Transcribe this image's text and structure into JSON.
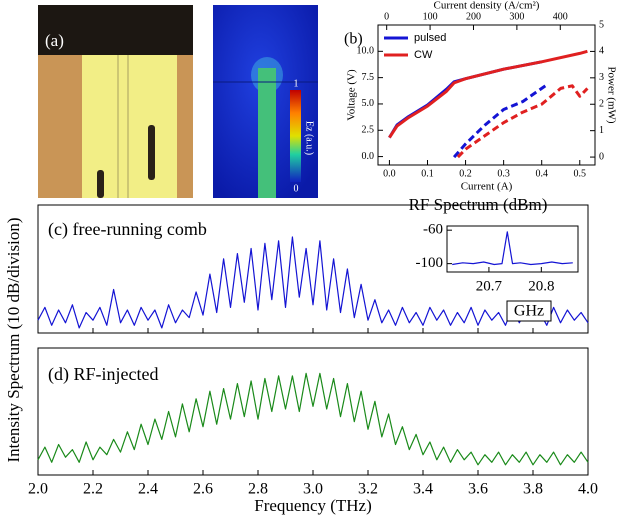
{
  "panel_a": {
    "label": "(a)",
    "colorbar_ticks": [
      0,
      1
    ],
    "colorbar_label": "Ez (a.u.)"
  },
  "chart_data": [
    {
      "type": "line",
      "label": "(b)",
      "xlabel": "Current (A)",
      "ylabel": "Voltage (V)",
      "y2label": "Power (mW)",
      "x2label": "Current density (A/cm²)",
      "xlim": [
        -0.03,
        0.54
      ],
      "xticks": [
        {
          "value": 0,
          "label": "0.0"
        },
        0.1,
        0.2,
        0.3,
        0.4,
        0.5
      ],
      "ylim": [
        -0.8,
        12.5
      ],
      "yticks": [
        {
          "value": 0,
          "label": "0.0"
        },
        2.5,
        {
          "value": 5,
          "label": "5.0"
        },
        7.5,
        {
          "value": 10,
          "label": "10.0"
        }
      ],
      "y2lim": [
        -0.3,
        5
      ],
      "y2ticks": [
        0,
        1,
        2,
        3,
        4,
        5
      ],
      "x2lim": [
        -20,
        480
      ],
      "x2ticks": [
        0,
        100,
        200,
        300,
        400
      ],
      "legend": "upper left",
      "series": [
        {
          "name": "pulsed",
          "color": "#1414d4",
          "linestyle": "solid",
          "x": [
            0,
            0.02,
            0.05,
            0.1,
            0.15,
            0.17,
            0.2,
            0.3,
            0.4
          ],
          "values": [
            1.8,
            3.0,
            3.8,
            4.9,
            6.4,
            7.1,
            7.4,
            8.3,
            9.0
          ]
        },
        {
          "name": "CW",
          "color": "#e02020",
          "linestyle": "solid",
          "x": [
            0,
            0.02,
            0.05,
            0.1,
            0.15,
            0.17,
            0.2,
            0.3,
            0.4,
            0.5,
            0.52
          ],
          "values": [
            1.8,
            2.9,
            3.7,
            4.8,
            6.2,
            7.0,
            7.4,
            8.3,
            9.0,
            9.8,
            10.0
          ]
        },
        {
          "color": "#1414d4",
          "linestyle": "dashed",
          "axis": "y2",
          "x": [
            0.17,
            0.2,
            0.25,
            0.3,
            0.35,
            0.4,
            0.41
          ],
          "values": [
            0,
            0.5,
            1.2,
            1.8,
            2.1,
            2.6,
            2.7
          ]
        },
        {
          "color": "#e02020",
          "linestyle": "dashed",
          "axis": "y2",
          "x": [
            0.18,
            0.2,
            0.25,
            0.3,
            0.35,
            0.4,
            0.45,
            0.48,
            0.5,
            0.52
          ],
          "values": [
            0,
            0.3,
            0.8,
            1.3,
            1.7,
            2.0,
            2.6,
            2.7,
            2.3,
            2.6
          ]
        }
      ]
    },
    {
      "type": "line",
      "label": "(c) free-running comb",
      "xlim": [
        2.0,
        4.0
      ],
      "xticks": [
        2.0,
        2.2,
        2.4,
        2.6,
        2.8,
        3.0,
        3.2,
        3.4,
        3.6,
        3.8,
        4.0
      ],
      "ylim": [
        0,
        5
      ],
      "x": [
        2.0,
        2.025,
        2.05,
        2.075,
        2.1,
        2.125,
        2.15,
        2.175,
        2.2,
        2.225,
        2.25,
        2.275,
        2.3,
        2.325,
        2.35,
        2.375,
        2.4,
        2.425,
        2.45,
        2.475,
        2.5,
        2.525,
        2.55,
        2.575,
        2.6,
        2.625,
        2.65,
        2.675,
        2.7,
        2.725,
        2.75,
        2.775,
        2.8,
        2.825,
        2.85,
        2.875,
        2.9,
        2.925,
        2.95,
        2.975,
        3.0,
        3.025,
        3.05,
        3.075,
        3.1,
        3.125,
        3.15,
        3.175,
        3.2,
        3.225,
        3.25,
        3.275,
        3.3,
        3.325,
        3.35,
        3.375,
        3.4,
        3.425,
        3.45,
        3.475,
        3.5,
        3.525,
        3.55,
        3.575,
        3.6,
        3.625,
        3.65,
        3.675,
        3.7,
        3.725,
        3.75,
        3.775,
        3.8,
        3.825,
        3.85,
        3.875,
        3.9,
        3.925,
        3.95,
        3.975,
        4.0
      ],
      "series": [
        {
          "color": "#1414d4",
          "values": [
            0.5,
            1.0,
            0.3,
            0.9,
            0.4,
            1.1,
            0.2,
            0.8,
            0.5,
            1.0,
            0.3,
            1.7,
            0.4,
            0.9,
            0.3,
            1.0,
            0.5,
            0.9,
            0.2,
            1.1,
            0.4,
            0.9,
            0.6,
            1.6,
            0.7,
            2.3,
            0.8,
            2.9,
            1.0,
            3.1,
            1.2,
            3.3,
            0.9,
            3.5,
            1.3,
            3.6,
            1.0,
            3.75,
            1.4,
            3.3,
            1.1,
            3.6,
            0.9,
            2.9,
            0.8,
            2.5,
            0.6,
            1.9,
            0.5,
            1.3,
            0.4,
            0.9,
            0.3,
            1.0,
            0.4,
            0.8,
            0.3,
            1.0,
            0.5,
            0.9,
            0.3,
            0.8,
            0.4,
            1.0,
            0.3,
            0.9,
            0.5,
            0.8,
            0.3,
            1.0,
            0.4,
            0.9,
            0.5,
            0.8,
            0.3,
            1.0,
            0.4,
            0.9,
            0.5,
            0.8,
            0.4
          ]
        }
      ]
    },
    {
      "type": "line",
      "ylabel": "RF Spectrum (dBm)",
      "xlabel": "GHz",
      "xlim": [
        20.62,
        20.87
      ],
      "xticks": [
        20.7,
        20.8
      ],
      "ylim": [
        -110,
        -55
      ],
      "yticks": [
        -60,
        -100
      ],
      "x": [
        20.63,
        20.65,
        20.67,
        20.69,
        20.71,
        20.725,
        20.735,
        20.745,
        20.76,
        20.78,
        20.8,
        20.82,
        20.84,
        20.86
      ],
      "series": [
        {
          "color": "#1414d4",
          "values": [
            -101,
            -99,
            -100,
            -98,
            -101,
            -100,
            -62,
            -100,
            -99,
            -101,
            -100,
            -98,
            -100,
            -99
          ]
        }
      ]
    },
    {
      "type": "line",
      "label": "(d) RF-injected",
      "xlabel": "Frequency (THz)",
      "ylabel": "Intensity Spectrum (10 dB/division)",
      "xlim": [
        2.0,
        4.0
      ],
      "xticks": [
        {
          "value": 2,
          "label": "2.0"
        },
        2.2,
        2.4,
        2.6,
        2.8,
        {
          "value": 3,
          "label": "3.0"
        },
        3.2,
        3.4,
        3.6,
        3.8,
        {
          "value": 4,
          "label": "4.0"
        }
      ],
      "ylim": [
        0,
        5
      ],
      "x": [
        2.0,
        2.025,
        2.05,
        2.075,
        2.1,
        2.125,
        2.15,
        2.175,
        2.2,
        2.225,
        2.25,
        2.275,
        2.3,
        2.325,
        2.35,
        2.375,
        2.4,
        2.425,
        2.45,
        2.475,
        2.5,
        2.525,
        2.55,
        2.575,
        2.6,
        2.625,
        2.65,
        2.675,
        2.7,
        2.725,
        2.75,
        2.775,
        2.8,
        2.825,
        2.85,
        2.875,
        2.9,
        2.925,
        2.95,
        2.975,
        3.0,
        3.025,
        3.05,
        3.075,
        3.1,
        3.125,
        3.15,
        3.175,
        3.2,
        3.225,
        3.25,
        3.275,
        3.3,
        3.325,
        3.35,
        3.375,
        3.4,
        3.425,
        3.45,
        3.475,
        3.5,
        3.525,
        3.55,
        3.575,
        3.6,
        3.625,
        3.65,
        3.675,
        3.7,
        3.725,
        3.75,
        3.775,
        3.8,
        3.825,
        3.85,
        3.875,
        3.9,
        3.925,
        3.95,
        3.975,
        4.0
      ],
      "series": [
        {
          "color": "#1a8a1a",
          "values": [
            0.6,
            1.1,
            0.5,
            1.2,
            0.7,
            1.0,
            0.5,
            1.3,
            0.6,
            1.1,
            0.8,
            1.4,
            0.9,
            1.7,
            1.0,
            2.0,
            1.2,
            2.2,
            1.4,
            2.5,
            1.5,
            2.8,
            1.7,
            3.0,
            1.9,
            3.3,
            2.0,
            3.4,
            2.2,
            3.6,
            2.3,
            3.7,
            2.2,
            3.8,
            2.5,
            3.9,
            2.6,
            3.9,
            2.5,
            4.0,
            2.7,
            4.0,
            2.6,
            3.8,
            2.3,
            3.6,
            2.1,
            3.3,
            1.8,
            2.9,
            1.5,
            2.4,
            1.2,
            1.9,
            1.0,
            1.6,
            0.8,
            1.3,
            0.6,
            1.1,
            0.5,
            1.0,
            0.6,
            0.9,
            0.4,
            0.8,
            0.5,
            0.9,
            0.4,
            0.8,
            0.5,
            0.9,
            0.4,
            0.8,
            0.5,
            0.9,
            0.4,
            0.8,
            0.5,
            0.9,
            0.5
          ]
        }
      ]
    }
  ]
}
